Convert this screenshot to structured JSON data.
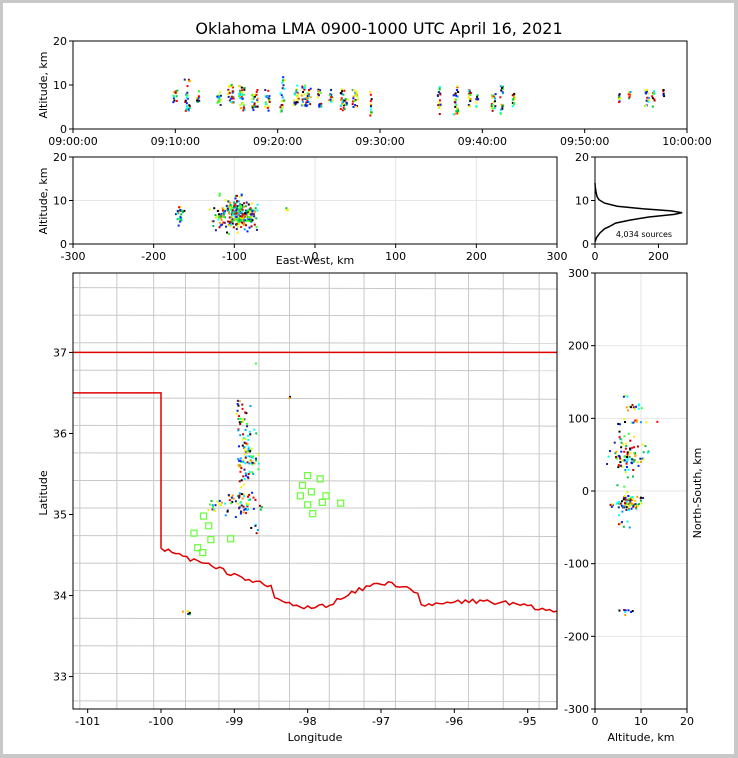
{
  "chart_data": [
    {
      "type": "scatter",
      "title": "Oklahoma LMA 0900-1000 UTC April 16, 2021",
      "xlabel": "",
      "ylabel": "Altitude, km",
      "x_ticks": [
        "09:00:00",
        "09:10:00",
        "09:20:00",
        "09:30:00",
        "09:40:00",
        "09:50:00",
        "10:00:00"
      ],
      "y_ticks": [
        "0",
        "10",
        "20"
      ],
      "xlim_minutes": [
        0,
        60
      ],
      "ylim": [
        0,
        20
      ],
      "clusters": [
        {
          "t": 10.0,
          "w": 0.4,
          "alt": [
            6,
            9
          ],
          "n": 12
        },
        {
          "t": 11.2,
          "w": 0.6,
          "alt": [
            4,
            12
          ],
          "n": 24
        },
        {
          "t": 12.2,
          "w": 0.3,
          "alt": [
            6,
            9
          ],
          "n": 10
        },
        {
          "t": 14.3,
          "w": 0.4,
          "alt": [
            5,
            9
          ],
          "n": 14
        },
        {
          "t": 15.4,
          "w": 0.6,
          "alt": [
            5,
            10
          ],
          "n": 26
        },
        {
          "t": 16.5,
          "w": 0.6,
          "alt": [
            4,
            10
          ],
          "n": 30
        },
        {
          "t": 17.8,
          "w": 0.6,
          "alt": [
            4,
            9
          ],
          "n": 24
        },
        {
          "t": 19.0,
          "w": 0.5,
          "alt": [
            4,
            9
          ],
          "n": 18
        },
        {
          "t": 20.5,
          "w": 0.5,
          "alt": [
            3,
            12
          ],
          "n": 22
        },
        {
          "t": 21.8,
          "w": 0.5,
          "alt": [
            5,
            10
          ],
          "n": 20
        },
        {
          "t": 22.8,
          "w": 0.9,
          "alt": [
            5,
            10
          ],
          "n": 40
        },
        {
          "t": 24.1,
          "w": 0.4,
          "alt": [
            5,
            9
          ],
          "n": 16
        },
        {
          "t": 25.2,
          "w": 0.4,
          "alt": [
            6,
            9
          ],
          "n": 14
        },
        {
          "t": 26.5,
          "w": 0.7,
          "alt": [
            4,
            9
          ],
          "n": 28
        },
        {
          "t": 27.6,
          "w": 0.6,
          "alt": [
            5,
            9
          ],
          "n": 20
        },
        {
          "t": 29.1,
          "w": 0.2,
          "alt": [
            3,
            9
          ],
          "n": 14
        },
        {
          "t": 35.8,
          "w": 0.3,
          "alt": [
            3,
            10
          ],
          "n": 18
        },
        {
          "t": 37.4,
          "w": 0.5,
          "alt": [
            3,
            10
          ],
          "n": 26
        },
        {
          "t": 38.8,
          "w": 0.3,
          "alt": [
            5,
            9
          ],
          "n": 16
        },
        {
          "t": 39.5,
          "w": 0.2,
          "alt": [
            5,
            8
          ],
          "n": 10
        },
        {
          "t": 41.1,
          "w": 0.4,
          "alt": [
            4,
            8
          ],
          "n": 18
        },
        {
          "t": 41.9,
          "w": 0.3,
          "alt": [
            3,
            10
          ],
          "n": 16
        },
        {
          "t": 43.1,
          "w": 0.3,
          "alt": [
            5,
            8
          ],
          "n": 12
        },
        {
          "t": 53.4,
          "w": 0.2,
          "alt": [
            6,
            8
          ],
          "n": 8
        },
        {
          "t": 54.4,
          "w": 0.2,
          "alt": [
            6,
            9
          ],
          "n": 8
        },
        {
          "t": 56.1,
          "w": 0.4,
          "alt": [
            5,
            9
          ],
          "n": 14
        },
        {
          "t": 56.7,
          "w": 0.3,
          "alt": [
            5,
            9
          ],
          "n": 10
        },
        {
          "t": 57.7,
          "w": 0.2,
          "alt": [
            6,
            9
          ],
          "n": 6
        }
      ]
    },
    {
      "type": "scatter",
      "title": "",
      "xlabel": "East-West, km",
      "ylabel": "Altitude, km",
      "x_ticks": [
        "-300",
        "-200",
        "-100",
        "0",
        "100",
        "200",
        "300"
      ],
      "y_ticks": [
        "0",
        "10",
        "20"
      ],
      "xlim": [
        -300,
        300
      ],
      "ylim": [
        0,
        20
      ],
      "grid": true,
      "clusters": [
        {
          "x": -95,
          "alt": 7,
          "sx": 9,
          "sy": 1.8,
          "n": 220
        },
        {
          "x": -120,
          "alt": 6.5,
          "sx": 5,
          "sy": 1.5,
          "n": 30
        },
        {
          "x": -167,
          "alt": 6.5,
          "sx": 3,
          "sy": 1,
          "n": 25
        },
        {
          "x": -80,
          "alt": 6.8,
          "sx": 6,
          "sy": 1.2,
          "n": 40
        },
        {
          "x": -35,
          "alt": 7.5,
          "sx": 1,
          "sy": 0.5,
          "n": 4
        }
      ]
    },
    {
      "type": "line",
      "title": "",
      "xlabel": "",
      "ylabel": "",
      "x_ticks": [
        "0",
        "200"
      ],
      "y_ticks": [
        "0",
        "10",
        "20"
      ],
      "xlim": [
        0,
        290
      ],
      "ylim": [
        0,
        20
      ],
      "annotation": "4,034 sources",
      "profile": [
        {
          "count": 0,
          "alt": 0.5
        },
        {
          "count": 5,
          "alt": 1.5
        },
        {
          "count": 15,
          "alt": 2.5
        },
        {
          "count": 30,
          "alt": 3.5
        },
        {
          "count": 45,
          "alt": 4.0
        },
        {
          "count": 65,
          "alt": 4.8
        },
        {
          "count": 110,
          "alt": 5.5
        },
        {
          "count": 170,
          "alt": 6.2
        },
        {
          "count": 250,
          "alt": 6.8
        },
        {
          "count": 275,
          "alt": 7.2
        },
        {
          "count": 240,
          "alt": 7.6
        },
        {
          "count": 150,
          "alt": 8.1
        },
        {
          "count": 70,
          "alt": 8.7
        },
        {
          "count": 30,
          "alt": 9.4
        },
        {
          "count": 12,
          "alt": 10.2
        },
        {
          "count": 6,
          "alt": 11.0
        },
        {
          "count": 3,
          "alt": 12.0
        },
        {
          "count": 1,
          "alt": 13.0
        },
        {
          "count": 0,
          "alt": 14.0
        }
      ]
    },
    {
      "type": "scatter",
      "title": "",
      "xlabel": "Longitude",
      "ylabel": "Latitude",
      "x_ticks": [
        "-101",
        "-100",
        "-99",
        "-98",
        "-97",
        "-96",
        "-95"
      ],
      "y_ticks": [
        "33",
        "34",
        "35",
        "36",
        "37"
      ],
      "xlim": [
        -101.2,
        -94.6
      ],
      "ylim": [
        32.6,
        37.98
      ],
      "right_ylabel": "North-South, km",
      "right_y_ticks": [
        "-300",
        "-200",
        "-100",
        "0",
        "100",
        "200",
        "300"
      ],
      "right_ylim": [
        -300,
        300
      ],
      "clusters": [
        {
          "lon": -98.85,
          "lat": 35.75,
          "slon": 0.06,
          "slat": 0.25,
          "n": 90
        },
        {
          "lon": -98.95,
          "lat": 35.15,
          "slon": 0.12,
          "slat": 0.08,
          "n": 50
        },
        {
          "lon": -99.25,
          "lat": 35.1,
          "slon": 0.05,
          "slat": 0.04,
          "n": 12
        },
        {
          "lon": -98.95,
          "lat": 36.3,
          "slon": 0.04,
          "slat": 0.05,
          "n": 10
        },
        {
          "lon": -98.9,
          "lat": 36.15,
          "slon": 0.04,
          "slat": 0.02,
          "n": 6
        },
        {
          "lon": -98.75,
          "lat": 35.65,
          "slon": 0.05,
          "slat": 0.04,
          "n": 12
        },
        {
          "lon": -98.7,
          "lat": 34.85,
          "slon": 0.02,
          "slat": 0.03,
          "n": 4
        },
        {
          "lon": -98.85,
          "lat": 35.05,
          "slon": 0.04,
          "slat": 0.02,
          "n": 6
        },
        {
          "lon": -99.65,
          "lat": 33.78,
          "slon": 0.03,
          "slat": 0.03,
          "n": 6
        },
        {
          "lon": -98.25,
          "lat": 36.45,
          "slon": 0.01,
          "slat": 0.01,
          "n": 2
        },
        {
          "lon": -98.7,
          "lat": 36.85,
          "slon": 0.01,
          "slat": 0.01,
          "n": 1
        }
      ],
      "stations": [
        [
          -98.0,
          35.48
        ],
        [
          -98.07,
          35.36
        ],
        [
          -97.83,
          35.44
        ],
        [
          -98.1,
          35.23
        ],
        [
          -97.95,
          35.28
        ],
        [
          -97.75,
          35.23
        ],
        [
          -98.0,
          35.12
        ],
        [
          -97.8,
          35.15
        ],
        [
          -97.55,
          35.14
        ],
        [
          -97.93,
          35.01
        ],
        [
          -99.42,
          34.98
        ],
        [
          -99.35,
          34.86
        ],
        [
          -99.55,
          34.77
        ],
        [
          -99.32,
          34.69
        ],
        [
          -99.5,
          34.59
        ],
        [
          -99.43,
          34.53
        ],
        [
          -99.05,
          34.7
        ]
      ]
    },
    {
      "type": "scatter",
      "title": "",
      "xlabel": "Altitude, km",
      "ylabel": "",
      "x_ticks": [
        "0",
        "10",
        "20"
      ],
      "xlim": [
        0,
        20
      ],
      "ylim": [
        -300,
        300
      ],
      "grid": true,
      "clusters": [
        {
          "alt": 7,
          "ns": 50,
          "salt": 1.8,
          "sns": 14,
          "n": 90
        },
        {
          "alt": 7,
          "ns": -18,
          "salt": 1.8,
          "sns": 6,
          "n": 80
        },
        {
          "alt": 8,
          "ns": 115,
          "salt": 1.2,
          "sns": 2,
          "n": 12
        },
        {
          "alt": 7,
          "ns": 96,
          "salt": 2.5,
          "sns": 2,
          "n": 12
        },
        {
          "alt": 7,
          "ns": 130,
          "salt": 0.3,
          "sns": 1,
          "n": 3
        },
        {
          "alt": 7,
          "ns": -167,
          "salt": 1,
          "sns": 2,
          "n": 8
        },
        {
          "alt": 6.5,
          "ns": -45,
          "salt": 1,
          "sns": 2,
          "n": 6
        }
      ]
    }
  ],
  "colors": {
    "state_border": "#e00000",
    "county_lines": "#c8c8c8",
    "station": "#66ff33",
    "frame_bg": "#c8c8c8",
    "source_palette": [
      "#1a237e",
      "#0020ff",
      "#00a0ff",
      "#00ffff",
      "#00c040",
      "#33ff33",
      "#ccff00",
      "#ffee00",
      "#ff9900",
      "#ff0000",
      "#b00000",
      "#000000"
    ]
  }
}
